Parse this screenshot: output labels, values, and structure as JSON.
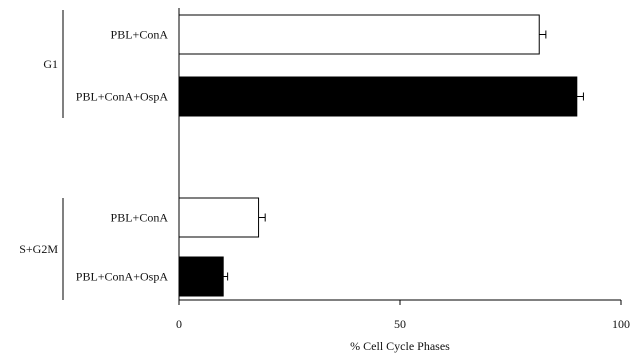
{
  "chart_data": {
    "type": "bar",
    "orientation": "horizontal",
    "xlabel": "% Cell Cycle Phases",
    "xlim": [
      0,
      100
    ],
    "xticks": [
      0,
      50,
      100
    ],
    "groups": [
      {
        "label": "G1",
        "bars": [
          {
            "label": "PBL+ConA",
            "value": 81.5,
            "error": 1.5,
            "fill": "#ffffff"
          },
          {
            "label": "PBL+ConA+OspA",
            "value": 90,
            "error": 1.5,
            "fill": "#000000"
          }
        ]
      },
      {
        "label": "S+G2M",
        "bars": [
          {
            "label": "PBL+ConA",
            "value": 18,
            "error": 1.5,
            "fill": "#ffffff"
          },
          {
            "label": "PBL+ConA+OspA",
            "value": 10,
            "error": 1.0,
            "fill": "#000000"
          }
        ]
      }
    ],
    "grid": false,
    "legend": "none"
  }
}
